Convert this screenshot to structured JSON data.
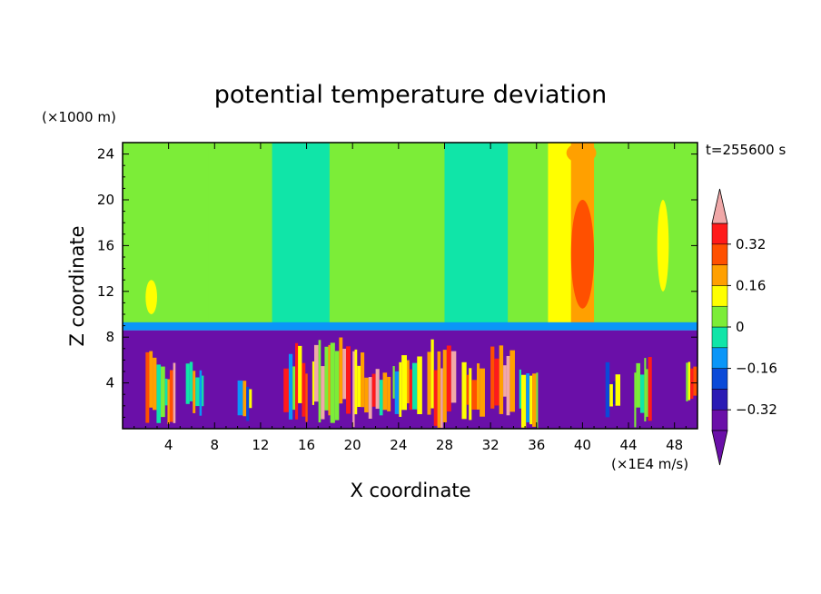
{
  "chart_data": {
    "type": "heatmap",
    "title": "potential temperature deviation",
    "xlabel": "X coordinate",
    "ylabel": "Z coordinate",
    "x_unit": "(×1E4 m/s)",
    "y_unit": "(×1000 m)",
    "time_label": "t=255600 s",
    "xlim": [
      0,
      50
    ],
    "ylim": [
      0,
      25
    ],
    "x_ticks": [
      4,
      8,
      12,
      16,
      20,
      24,
      28,
      32,
      36,
      40,
      44,
      48
    ],
    "y_ticks": [
      4,
      8,
      12,
      16,
      20,
      24
    ],
    "colorbar": {
      "levels": [
        -0.4,
        -0.32,
        -0.24,
        -0.16,
        -0.08,
        0,
        0.08,
        0.16,
        0.24,
        0.32,
        0.4
      ],
      "colors": [
        "#6a0fa8",
        "#2a1ab4",
        "#0a4ad8",
        "#0a96f8",
        "#10e5a8",
        "#7ced38",
        "#ffff00",
        "#ffa000",
        "#ff5000",
        "#ff1a1a"
      ],
      "under_color": "#6a0fa8",
      "over_color": "#f0a8a8",
      "tick_labels": [
        "0.32",
        "0.16",
        "0",
        "−0.16",
        "−0.32"
      ],
      "tick_values": [
        0.32,
        0.16,
        0,
        -0.16,
        -0.32
      ]
    },
    "columns_upper": [
      {
        "x0": 0.0,
        "x1": 2.0,
        "v": 0.05
      },
      {
        "x0": 2.0,
        "x1": 4.0,
        "v": 0.07
      },
      {
        "x0": 4.0,
        "x1": 7.5,
        "v": 0.02
      },
      {
        "x0": 7.5,
        "x1": 10.5,
        "v": 0.06
      },
      {
        "x0": 10.5,
        "x1": 13.0,
        "v": 0.03
      },
      {
        "x0": 13.0,
        "x1": 15.5,
        "v": -0.03
      },
      {
        "x0": 15.5,
        "x1": 18.0,
        "v": -0.07
      },
      {
        "x0": 18.0,
        "x1": 23.0,
        "v": 0.03
      },
      {
        "x0": 23.0,
        "x1": 28.0,
        "v": 0.06
      },
      {
        "x0": 28.0,
        "x1": 31.0,
        "v": -0.02
      },
      {
        "x0": 31.0,
        "x1": 33.5,
        "v": -0.07
      },
      {
        "x0": 33.5,
        "x1": 37.0,
        "v": 0.06
      },
      {
        "x0": 37.0,
        "x1": 39.0,
        "v": 0.1
      },
      {
        "x0": 39.0,
        "x1": 41.0,
        "v": 0.2
      },
      {
        "x0": 41.0,
        "x1": 43.0,
        "v": 0.03
      },
      {
        "x0": 43.0,
        "x1": 46.0,
        "v": 0.07
      },
      {
        "x0": 46.0,
        "x1": 50.0,
        "v": 0.05
      }
    ],
    "features": [
      {
        "x0": 39.0,
        "x1": 41.0,
        "y0": 10.5,
        "y1": 20.0,
        "v": 0.3
      },
      {
        "x0": 38.6,
        "x1": 41.2,
        "y0": 23.2,
        "y1": 25.0,
        "v": 0.2
      },
      {
        "x0": 2.0,
        "x1": 3.0,
        "y0": 10.0,
        "y1": 13.0,
        "v": 0.14
      },
      {
        "x0": 46.5,
        "x1": 47.5,
        "y0": 12.0,
        "y1": 20.0,
        "v": 0.11
      }
    ],
    "lower_layer": {
      "y_min": 0,
      "y_max": 8.6,
      "background_v": -0.45
    },
    "blobs_lower": [
      {
        "x0": 2.0,
        "x1": 4.5,
        "y0": 0.0,
        "y1": 7.0,
        "v": 0.3
      },
      {
        "x0": 5.5,
        "x1": 7.0,
        "y0": 1.0,
        "y1": 6.0,
        "v": 0.1
      },
      {
        "x0": 10.0,
        "x1": 11.0,
        "y0": 0.5,
        "y1": 5.0,
        "v": 0.05
      },
      {
        "x0": 14.0,
        "x1": 16.0,
        "y0": 0.0,
        "y1": 7.5,
        "v": 0.2
      },
      {
        "x0": 16.5,
        "x1": 19.5,
        "y0": 0.5,
        "y1": 8.0,
        "v": 0.35
      },
      {
        "x0": 20.0,
        "x1": 23.0,
        "y0": 0.0,
        "y1": 7.0,
        "v": 0.3
      },
      {
        "x0": 23.5,
        "x1": 26.0,
        "y0": 1.0,
        "y1": 6.5,
        "v": 0.18
      },
      {
        "x0": 26.5,
        "x1": 29.0,
        "y0": 0.0,
        "y1": 8.0,
        "v": 0.42
      },
      {
        "x0": 29.5,
        "x1": 31.5,
        "y0": 0.5,
        "y1": 6.0,
        "v": 0.25
      },
      {
        "x0": 32.0,
        "x1": 34.0,
        "y0": 1.0,
        "y1": 7.5,
        "v": 0.33
      },
      {
        "x0": 34.5,
        "x1": 36.0,
        "y0": 0.0,
        "y1": 6.0,
        "v": 0.15
      },
      {
        "x0": 42.0,
        "x1": 43.0,
        "y0": 0.5,
        "y1": 6.0,
        "v": 0.08
      },
      {
        "x0": 44.5,
        "x1": 46.0,
        "y0": 0.0,
        "y1": 6.5,
        "v": 0.22
      },
      {
        "x0": 49.0,
        "x1": 50.0,
        "y0": 2.0,
        "y1": 6.0,
        "v": 0.3
      }
    ]
  }
}
